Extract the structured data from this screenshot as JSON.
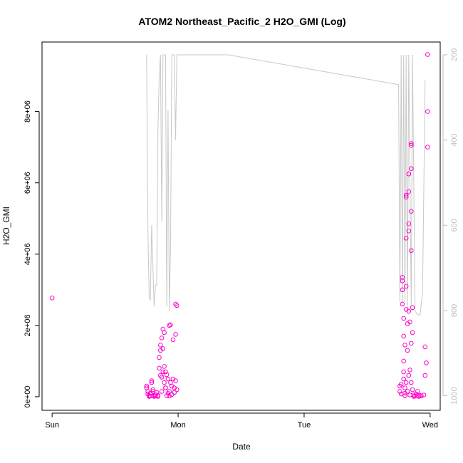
{
  "chart_data": {
    "type": "scatter",
    "title": "ATOM2 Northeast_Pacific_2 H2O_GMI (Log)",
    "xlabel": "Date",
    "ylabel": "H2O_GMI",
    "x_ticks": [
      {
        "label": "Sun",
        "value": 0
      },
      {
        "label": "Mon",
        "value": 1
      },
      {
        "label": "Tue",
        "value": 2
      },
      {
        "label": "Wed",
        "value": 3
      }
    ],
    "xlim": [
      -0.08,
      3.08
    ],
    "y_ticks": [
      {
        "label": "0e+00",
        "value": 0
      },
      {
        "label": "2e+06",
        "value": 2000000
      },
      {
        "label": "4e+06",
        "value": 4000000
      },
      {
        "label": "6e+06",
        "value": 6000000
      },
      {
        "label": "8e+06",
        "value": 8000000
      }
    ],
    "ylim": [
      -380000,
      9950000
    ],
    "y2_ticks": [
      {
        "label": "200",
        "value": 200
      },
      {
        "label": "400",
        "value": 400
      },
      {
        "label": "600",
        "value": 600
      },
      {
        "label": "800",
        "value": 800
      },
      {
        "label": "1000",
        "value": 1000
      }
    ],
    "y2lim": [
      1034,
      170
    ],
    "grid": false,
    "colors": {
      "points": "#ff00cc",
      "pressure": "#c8c8c8",
      "right_axis": "#bdbdbd"
    },
    "series": [
      {
        "kind": "pressure-line",
        "points": [
          [
            0.75,
            200
          ],
          [
            0.76,
            600
          ],
          [
            0.77,
            770
          ],
          [
            0.78,
            775
          ],
          [
            0.79,
            600
          ],
          [
            0.8,
            700
          ],
          [
            0.81,
            790
          ],
          [
            0.82,
            740
          ],
          [
            0.83,
            740
          ],
          [
            0.84,
            380
          ],
          [
            0.85,
            250
          ],
          [
            0.86,
            200
          ],
          [
            0.87,
            590
          ],
          [
            0.88,
            200
          ],
          [
            0.9,
            200
          ],
          [
            0.91,
            790
          ],
          [
            0.92,
            330
          ],
          [
            0.93,
            800
          ],
          [
            0.94,
            650
          ],
          [
            0.95,
            200
          ],
          [
            0.97,
            200
          ],
          [
            0.98,
            400
          ],
          [
            0.99,
            200
          ],
          [
            1.4,
            200
          ],
          [
            2.75,
            270
          ],
          [
            2.76,
            780
          ],
          [
            2.77,
            200
          ],
          [
            2.78,
            790
          ],
          [
            2.79,
            200
          ],
          [
            2.8,
            780
          ],
          [
            2.81,
            200
          ],
          [
            2.82,
            800
          ],
          [
            2.83,
            200
          ],
          [
            2.85,
            790
          ],
          [
            2.86,
            200
          ],
          [
            2.88,
            800
          ],
          [
            2.9,
            810
          ],
          [
            2.92,
            810
          ],
          [
            2.94,
            760
          ],
          [
            2.96,
            260
          ]
        ]
      },
      {
        "kind": "scatter",
        "points": [
          [
            0.0,
            2770000
          ],
          [
            0.75,
            300000
          ],
          [
            0.75,
            250000
          ],
          [
            0.76,
            150000
          ],
          [
            0.76,
            80000
          ],
          [
            0.77,
            10000
          ],
          [
            0.77,
            30000
          ],
          [
            0.78,
            20000
          ],
          [
            0.78,
            100000
          ],
          [
            0.79,
            450000
          ],
          [
            0.79,
            400000
          ],
          [
            0.8,
            200000
          ],
          [
            0.8,
            150000
          ],
          [
            0.81,
            30000
          ],
          [
            0.81,
            10000
          ],
          [
            0.82,
            20000
          ],
          [
            0.82,
            60000
          ],
          [
            0.83,
            120000
          ],
          [
            0.84,
            10000
          ],
          [
            0.84,
            40000
          ],
          [
            0.85,
            800000
          ],
          [
            0.85,
            1100000
          ],
          [
            0.86,
            1450000
          ],
          [
            0.86,
            1300000
          ],
          [
            0.86,
            600000
          ],
          [
            0.87,
            1650000
          ],
          [
            0.87,
            550000
          ],
          [
            0.87,
            150000
          ],
          [
            0.88,
            1900000
          ],
          [
            0.88,
            1350000
          ],
          [
            0.88,
            700000
          ],
          [
            0.89,
            1800000
          ],
          [
            0.89,
            850000
          ],
          [
            0.89,
            400000
          ],
          [
            0.9,
            700000
          ],
          [
            0.9,
            250000
          ],
          [
            0.91,
            620000
          ],
          [
            0.91,
            30000
          ],
          [
            0.92,
            500000
          ],
          [
            0.92,
            100000
          ],
          [
            0.93,
            2000000
          ],
          [
            0.93,
            150000
          ],
          [
            0.93,
            20000
          ],
          [
            0.94,
            2020000
          ],
          [
            0.94,
            400000
          ],
          [
            0.95,
            300000
          ],
          [
            0.95,
            60000
          ],
          [
            0.96,
            1600000
          ],
          [
            0.96,
            500000
          ],
          [
            0.97,
            250000
          ],
          [
            0.97,
            120000
          ],
          [
            0.98,
            1750000
          ],
          [
            0.98,
            2600000
          ],
          [
            0.99,
            2560000
          ],
          [
            0.98,
            450000
          ],
          [
            0.99,
            200000
          ],
          [
            0.9,
            250000
          ],
          [
            2.76,
            150000
          ],
          [
            2.76,
            300000
          ],
          [
            2.77,
            350000
          ],
          [
            2.77,
            80000
          ],
          [
            2.78,
            3350000
          ],
          [
            2.78,
            3250000
          ],
          [
            2.78,
            3000000
          ],
          [
            2.78,
            2600000
          ],
          [
            2.79,
            2200000
          ],
          [
            2.79,
            1700000
          ],
          [
            2.79,
            1000000
          ],
          [
            2.79,
            700000
          ],
          [
            2.79,
            500000
          ],
          [
            2.8,
            1450000
          ],
          [
            2.8,
            250000
          ],
          [
            2.8,
            100000
          ],
          [
            2.8,
            30000
          ],
          [
            2.81,
            5650000
          ],
          [
            2.81,
            5600000
          ],
          [
            2.81,
            4450000
          ],
          [
            2.81,
            3100000
          ],
          [
            2.81,
            2450000
          ],
          [
            2.81,
            400000
          ],
          [
            2.82,
            2050000
          ],
          [
            2.82,
            1300000
          ],
          [
            2.82,
            150000
          ],
          [
            2.83,
            6250000
          ],
          [
            2.83,
            6250000
          ],
          [
            2.83,
            5750000
          ],
          [
            2.83,
            4650000
          ],
          [
            2.83,
            4850000
          ],
          [
            2.83,
            2400000
          ],
          [
            2.83,
            600000
          ],
          [
            2.84,
            2100000
          ],
          [
            2.84,
            750000
          ],
          [
            2.84,
            50000
          ],
          [
            2.85,
            7100000
          ],
          [
            2.85,
            7050000
          ],
          [
            2.85,
            6400000
          ],
          [
            2.85,
            5200000
          ],
          [
            2.85,
            4100000
          ],
          [
            2.85,
            1500000
          ],
          [
            2.85,
            400000
          ],
          [
            2.86,
            2500000
          ],
          [
            2.86,
            1800000
          ],
          [
            2.86,
            200000
          ],
          [
            2.87,
            50000
          ],
          [
            2.87,
            10000
          ],
          [
            2.88,
            20000
          ],
          [
            2.89,
            80000
          ],
          [
            2.9,
            30000
          ],
          [
            2.9,
            150000
          ],
          [
            2.91,
            10000
          ],
          [
            2.92,
            40000
          ],
          [
            2.93,
            20000
          ],
          [
            2.95,
            50000
          ],
          [
            2.96,
            1400000
          ],
          [
            2.96,
            600000
          ],
          [
            2.97,
            950000
          ],
          [
            2.98,
            9600000
          ],
          [
            2.98,
            8000000
          ],
          [
            2.98,
            7000000
          ]
        ]
      }
    ]
  }
}
